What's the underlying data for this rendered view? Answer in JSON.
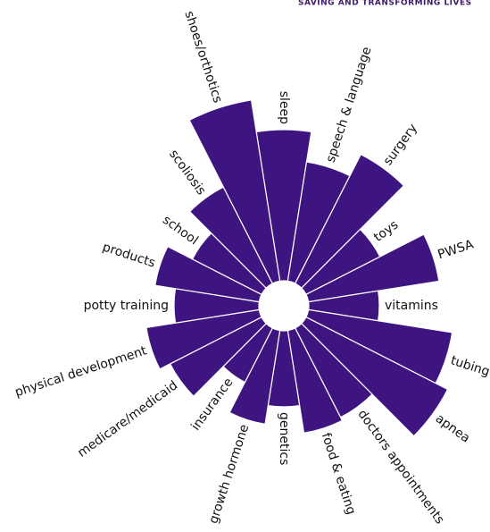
{
  "header": {
    "tagline": "SAVING AND TRANSFORMING LIVES"
  },
  "chart_data": {
    "type": "polar-bar",
    "color": "#3e1580",
    "categories": [
      "sleep",
      "speech & language",
      "surgery",
      "toys",
      "PWSA",
      "vitamins",
      "tubing",
      "apnea",
      "doctors appointments",
      "food & eating",
      "genetics",
      "growth hormone",
      "insurance",
      "medicare/medicaid",
      "physical development",
      "potty training",
      "products",
      "school",
      "scoliosis",
      "shoes/orthotics"
    ],
    "values": [
      169,
      135,
      162,
      93,
      148,
      79,
      163,
      178,
      112,
      116,
      85,
      106,
      68,
      115,
      128,
      95,
      118,
      87,
      121,
      205
    ]
  }
}
